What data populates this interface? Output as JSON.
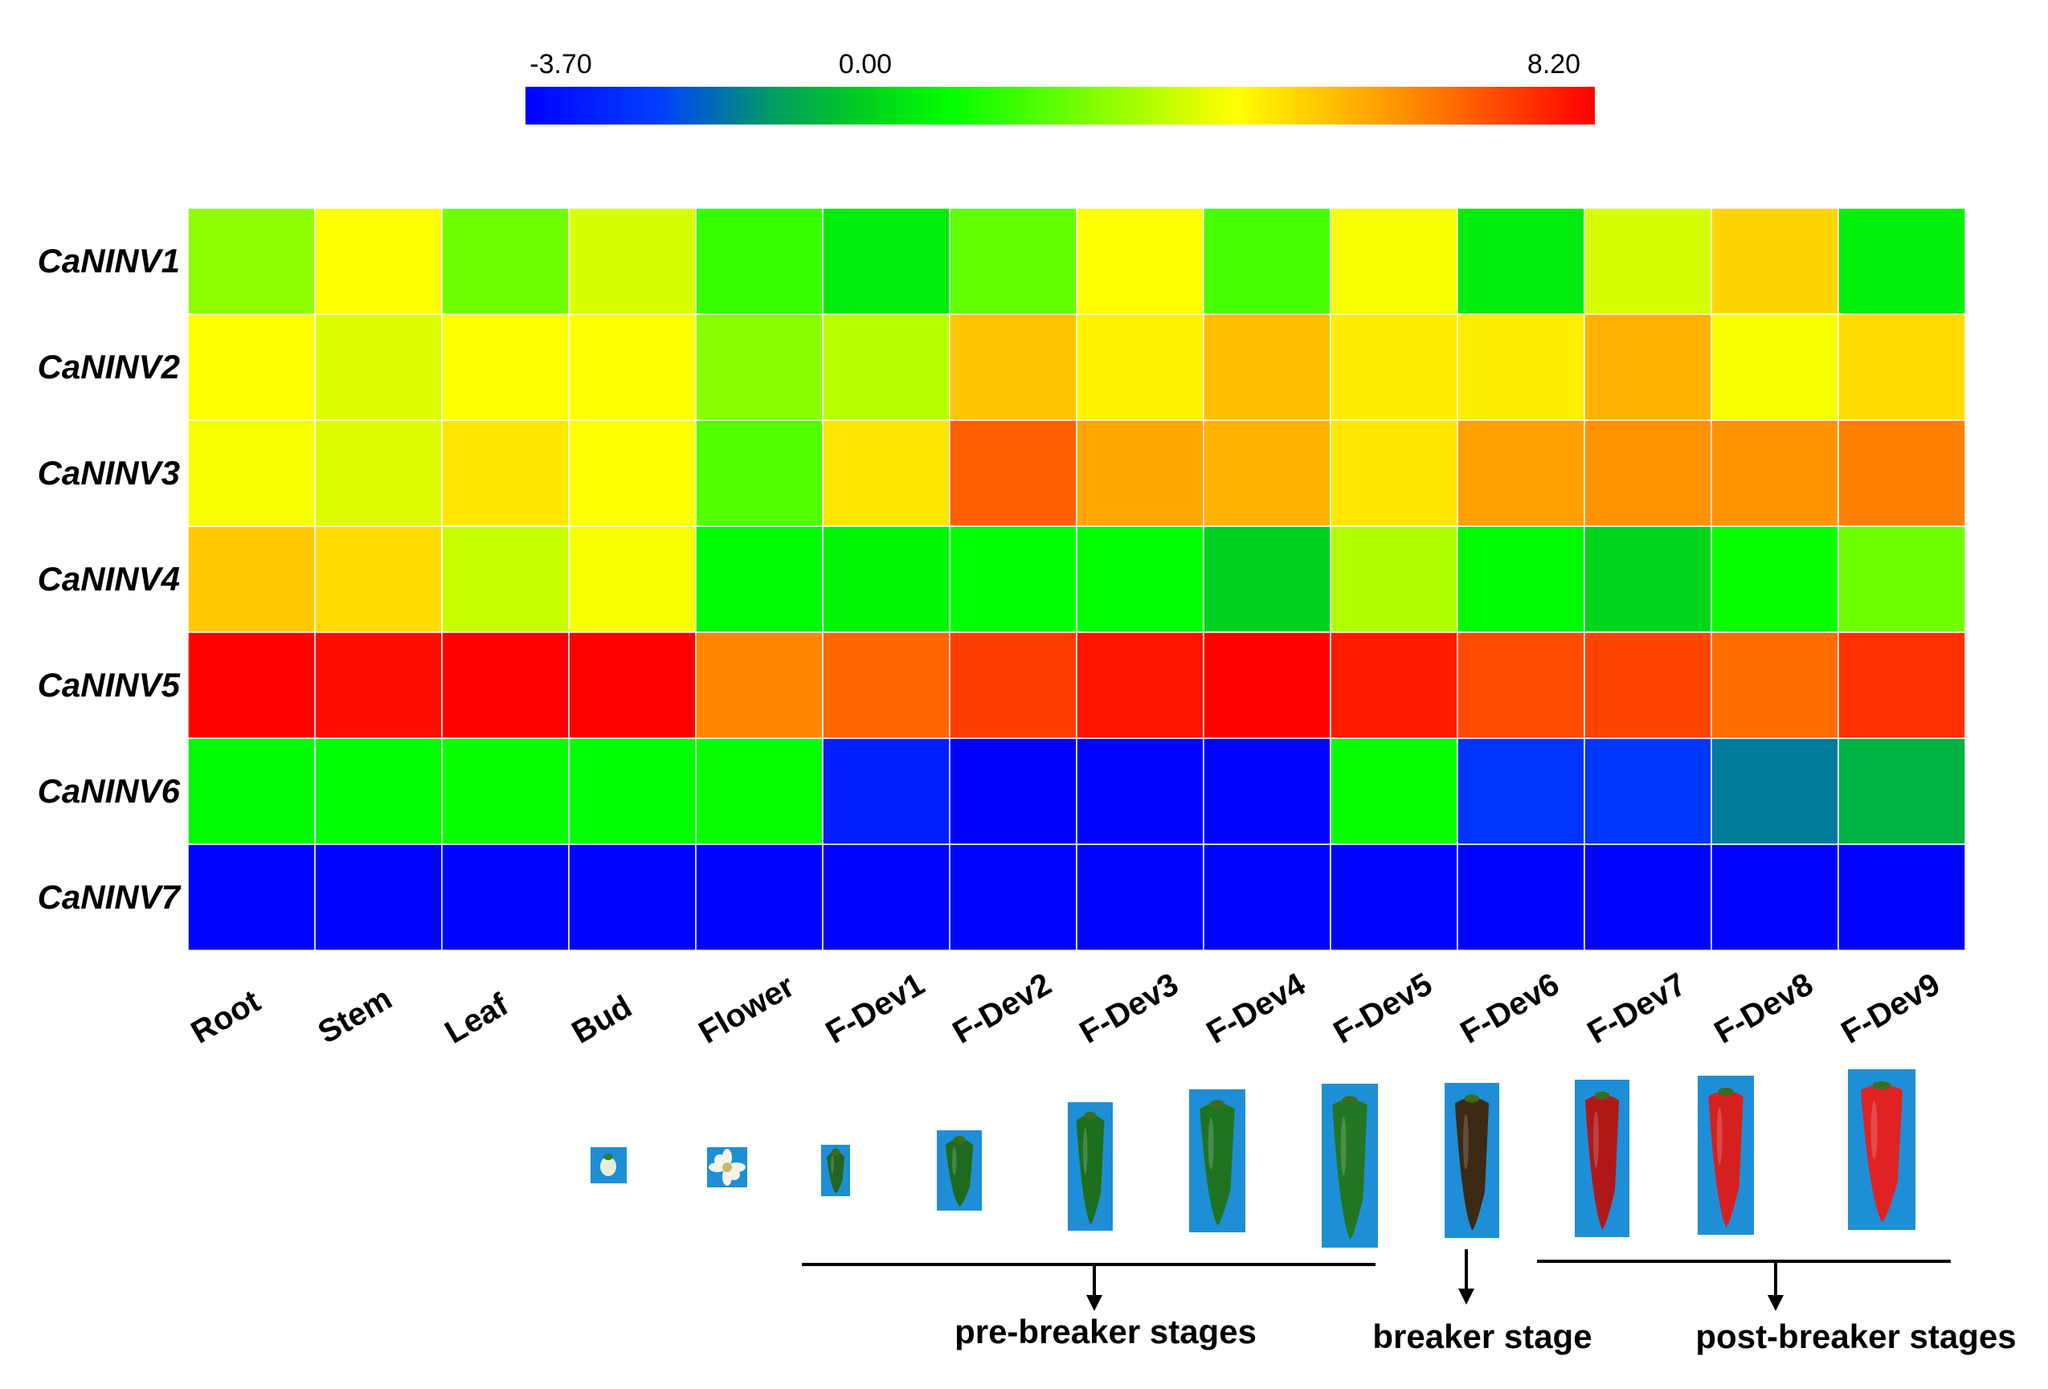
{
  "chart_data": {
    "type": "heatmap",
    "color_scale": {
      "min_label": "-3.70",
      "mid_label": "0.00",
      "max_label": "8.20",
      "min": -3.7,
      "mid": 0.0,
      "max": 8.2,
      "stops": [
        {
          "value": -3.7,
          "color": "#0000ff"
        },
        {
          "value": -2.2,
          "color": "#0040ff"
        },
        {
          "value": -1.0,
          "color": "#009966"
        },
        {
          "value": 0.0,
          "color": "#00cc22"
        },
        {
          "value": 1.0,
          "color": "#00ff00"
        },
        {
          "value": 4.2,
          "color": "#ffff00"
        },
        {
          "value": 6.2,
          "color": "#ff8800"
        },
        {
          "value": 8.2,
          "color": "#ff0000"
        }
      ]
    },
    "rows": [
      "CaNINV1",
      "CaNINV2",
      "CaNINV3",
      "CaNINV4",
      "CaNINV5",
      "CaNINV6",
      "CaNINV7"
    ],
    "columns": [
      "Root",
      "Stem",
      "Leaf",
      "Bud",
      "Flower",
      "F-Dev1",
      "F-Dev2",
      "F-Dev3",
      "F-Dev4",
      "F-Dev5",
      "F-Dev6",
      "F-Dev7",
      "F-Dev8",
      "F-Dev9"
    ],
    "values": [
      [
        2.8,
        4.2,
        2.4,
        3.7,
        1.7,
        0.6,
        2.2,
        4.2,
        1.9,
        4.1,
        0.6,
        3.7,
        4.9,
        0.7
      ],
      [
        4.2,
        3.8,
        4.2,
        4.2,
        2.7,
        3.3,
        5.2,
        4.4,
        5.3,
        4.5,
        4.5,
        5.5,
        4.1,
        4.8
      ],
      [
        4.1,
        3.8,
        4.6,
        4.2,
        2.0,
        4.6,
        6.8,
        5.7,
        5.5,
        4.6,
        5.8,
        6.0,
        6.0,
        6.3
      ],
      [
        5.1,
        4.8,
        3.5,
        4.1,
        0.9,
        0.8,
        1.0,
        1.0,
        0.1,
        3.2,
        0.9,
        0.2,
        1.1,
        2.4
      ],
      [
        8.2,
        8.0,
        8.2,
        8.2,
        6.2,
        6.7,
        7.3,
        7.9,
        8.2,
        7.8,
        7.1,
        7.2,
        6.6,
        7.5
      ],
      [
        0.9,
        1.0,
        1.1,
        1.0,
        1.1,
        -3.0,
        -3.7,
        -3.6,
        -3.6,
        1.1,
        -2.5,
        -2.4,
        -1.4,
        -0.5
      ],
      [
        -3.6,
        -3.6,
        -3.6,
        -3.6,
        -3.6,
        -3.6,
        -3.6,
        -3.6,
        -3.6,
        -3.6,
        -3.6,
        -3.6,
        -3.6,
        -3.6
      ]
    ],
    "fruit_photos": [
      {
        "stage": "F-Dev1",
        "fruit_color": "#226622"
      },
      {
        "stage": "F-Dev2",
        "fruit_color": "#1f6a1f"
      },
      {
        "stage": "F-Dev3",
        "fruit_color": "#1d6e1d"
      },
      {
        "stage": "F-Dev4",
        "fruit_color": "#207320"
      },
      {
        "stage": "F-Dev5",
        "fruit_color": "#237623"
      },
      {
        "stage": "F-Dev6",
        "fruit_color": "#3c2a14"
      },
      {
        "stage": "F-Dev7",
        "fruit_color": "#b01818"
      },
      {
        "stage": "F-Dev8",
        "fruit_color": "#d62020"
      },
      {
        "stage": "F-Dev9",
        "fruit_color": "#e02222"
      }
    ],
    "stage_groups": [
      {
        "label": "pre-breaker stages"
      },
      {
        "label": "breaker stage"
      },
      {
        "label": "post-breaker stages"
      }
    ],
    "photo_background": "#1e8fd6"
  }
}
